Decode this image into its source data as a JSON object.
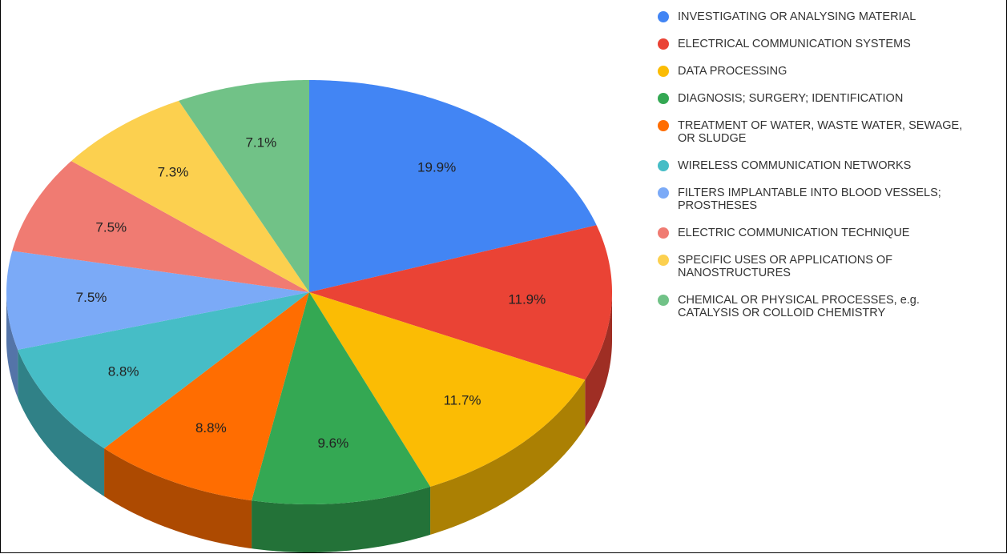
{
  "chart_data": {
    "type": "pie3d",
    "categories": [
      "INVESTIGATING OR ANALYSING MATERIAL",
      "ELECTRICAL COMMUNICATION SYSTEMS",
      "DATA PROCESSING",
      "DIAGNOSIS; SURGERY; IDENTIFICATION",
      "TREATMENT OF WATER, WASTE WATER, SEWAGE, OR SLUDGE",
      "WIRELESS COMMUNICATION NETWORKS",
      "FILTERS IMPLANTABLE INTO BLOOD VESSELS; PROSTHESES",
      "ELECTRIC COMMUNICATION TECHNIQUE",
      "SPECIFIC USES OR APPLICATIONS OF NANOSTRUCTURES",
      "CHEMICAL OR PHYSICAL PROCESSES, e.g. CATALYSIS OR COLLOID CHEMISTRY"
    ],
    "values": [
      19.9,
      11.9,
      11.7,
      9.6,
      8.8,
      8.8,
      7.5,
      7.5,
      7.3,
      7.1
    ],
    "value_labels": [
      "19.9%",
      "11.9%",
      "11.7%",
      "9.6%",
      "8.8%",
      "8.8%",
      "7.5%",
      "7.5%",
      "7.3%",
      "7.1%"
    ],
    "colors": [
      "#4285f4",
      "#ea4335",
      "#fbbc04",
      "#34a853",
      "#ff6d01",
      "#46bdc6",
      "#7baaf7",
      "#f07b72",
      "#fcd04f",
      "#71c287"
    ],
    "legend": "right"
  }
}
